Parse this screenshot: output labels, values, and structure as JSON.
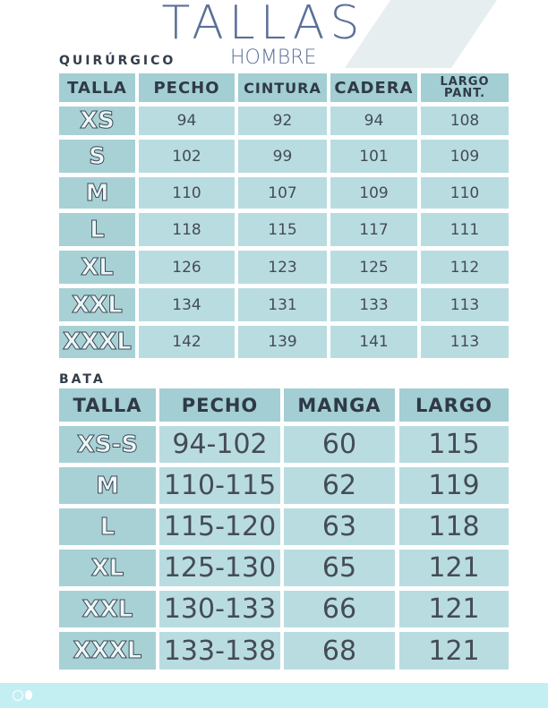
{
  "title": "TALLAS",
  "subtitle": "HOMBRE",
  "quirurgico": {
    "label": "QUIRÚRGICO",
    "headers": [
      "TALLA",
      "PECHO",
      "CINTURA",
      "CADERA",
      "LARGO PANT."
    ],
    "rows": [
      [
        "XS",
        "94",
        "92",
        "94",
        "108"
      ],
      [
        "S",
        "102",
        "99",
        "101",
        "109"
      ],
      [
        "M",
        "110",
        "107",
        "109",
        "110"
      ],
      [
        "L",
        "118",
        "115",
        "117",
        "111"
      ],
      [
        "XL",
        "126",
        "123",
        "125",
        "112"
      ],
      [
        "XXL",
        "134",
        "131",
        "133",
        "113"
      ],
      [
        "XXXL",
        "142",
        "139",
        "141",
        "113"
      ]
    ]
  },
  "bata": {
    "label": "BATA",
    "headers": [
      "TALLA",
      "PECHO",
      "MANGA",
      "LARGO"
    ],
    "rows": [
      [
        "XS-S",
        "94-102",
        "60",
        "115"
      ],
      [
        "M",
        "110-115",
        "62",
        "119"
      ],
      [
        "L",
        "115-120",
        "63",
        "118"
      ],
      [
        "XL",
        "125-130",
        "65",
        "121"
      ],
      [
        "XXL",
        "130-133",
        "66",
        "121"
      ],
      [
        "XXXL",
        "133-138",
        "68",
        "121"
      ]
    ]
  },
  "colors": {
    "header": "#a3ced3",
    "cell": "#b9dce1",
    "title": "#5b6f98",
    "footer": "#c3eff3"
  }
}
